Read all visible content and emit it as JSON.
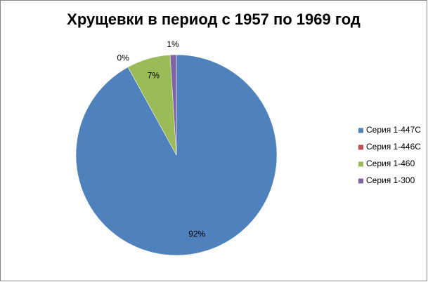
{
  "chart_data": {
    "type": "pie",
    "title": "Хрущевки в период с 1957 по 1969 год",
    "categories": [
      "Серия 1-447С",
      "Серия 1-446С",
      "Серия 1-460",
      "Серия 1-300"
    ],
    "values": [
      92,
      0,
      7,
      1
    ],
    "value_labels": [
      "92%",
      "0%",
      "7%",
      "1%"
    ],
    "colors": [
      "#4f81bd",
      "#c0504d",
      "#9bbb59",
      "#8064a2"
    ],
    "legend": "right"
  }
}
